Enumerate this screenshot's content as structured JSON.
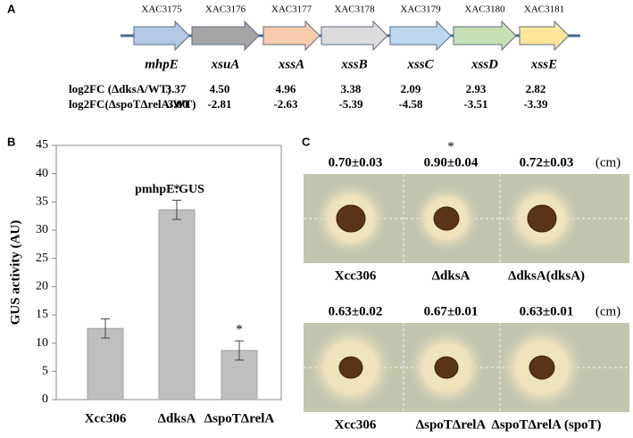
{
  "panel_a": {
    "label": "A",
    "genes": [
      {
        "id": "XAC3175",
        "name": "mhpE",
        "color": "#b4c7e7"
      },
      {
        "id": "XAC3176",
        "name": "xsuA",
        "color": "#a5a5a5"
      },
      {
        "id": "XAC3177",
        "name": "xssA",
        "color": "#f8cbad"
      },
      {
        "id": "XAC3178",
        "name": "xssB",
        "color": "#dcdcdc"
      },
      {
        "id": "XAC3179",
        "name": "xssC",
        "color": "#bdd7ee"
      },
      {
        "id": "XAC3180",
        "name": "xssD",
        "color": "#c5e0b4"
      },
      {
        "id": "XAC3181",
        "name": "xssE",
        "color": "#ffe699"
      }
    ],
    "rows": [
      {
        "label": "log2FC (ΔdksA/WT)",
        "values": [
          "3.37",
          "4.50",
          "4.96",
          "3.38",
          "2.09",
          "2.93",
          "2.82"
        ]
      },
      {
        "label": "log2FC(ΔspoTΔrelA/WT)",
        "values": [
          "-3.00",
          "-2.81",
          "-2.63",
          "-5.39",
          "-4.58",
          "-3.51",
          "-3.39"
        ]
      }
    ]
  },
  "chart_data": {
    "type": "bar",
    "panel_label": "B",
    "annotation": "pmhpE:GUS",
    "y_label": "GUS activity (AU)",
    "categories": [
      "Xcc306",
      "ΔdksA",
      "ΔspoTΔrelA"
    ],
    "values": [
      12.6,
      33.6,
      8.7
    ],
    "errors": [
      1.7,
      1.7,
      1.7
    ],
    "significance": [
      null,
      "*",
      "*"
    ],
    "color": "#bfbfbf",
    "ylim": [
      0,
      45
    ],
    "yticks": [
      0,
      5,
      10,
      15,
      20,
      25,
      30,
      35,
      40,
      45
    ]
  },
  "panel_c": {
    "label": "C",
    "unit": "(cm)",
    "plates": [
      {
        "diameters": [
          "0.70±0.03",
          "0.90±0.04",
          "0.72±0.03"
        ],
        "significance": [
          null,
          "*",
          null
        ],
        "strains": [
          "Xcc306",
          "ΔdksA",
          "ΔdksA(dksA)"
        ]
      },
      {
        "diameters": [
          "0.63±0.02",
          "0.67±0.01",
          "0.63±0.01"
        ],
        "significance": [
          null,
          null,
          null
        ],
        "strains": [
          "Xcc306",
          "ΔspoTΔrelA",
          "ΔspoTΔrelA (spoT)"
        ]
      }
    ]
  }
}
